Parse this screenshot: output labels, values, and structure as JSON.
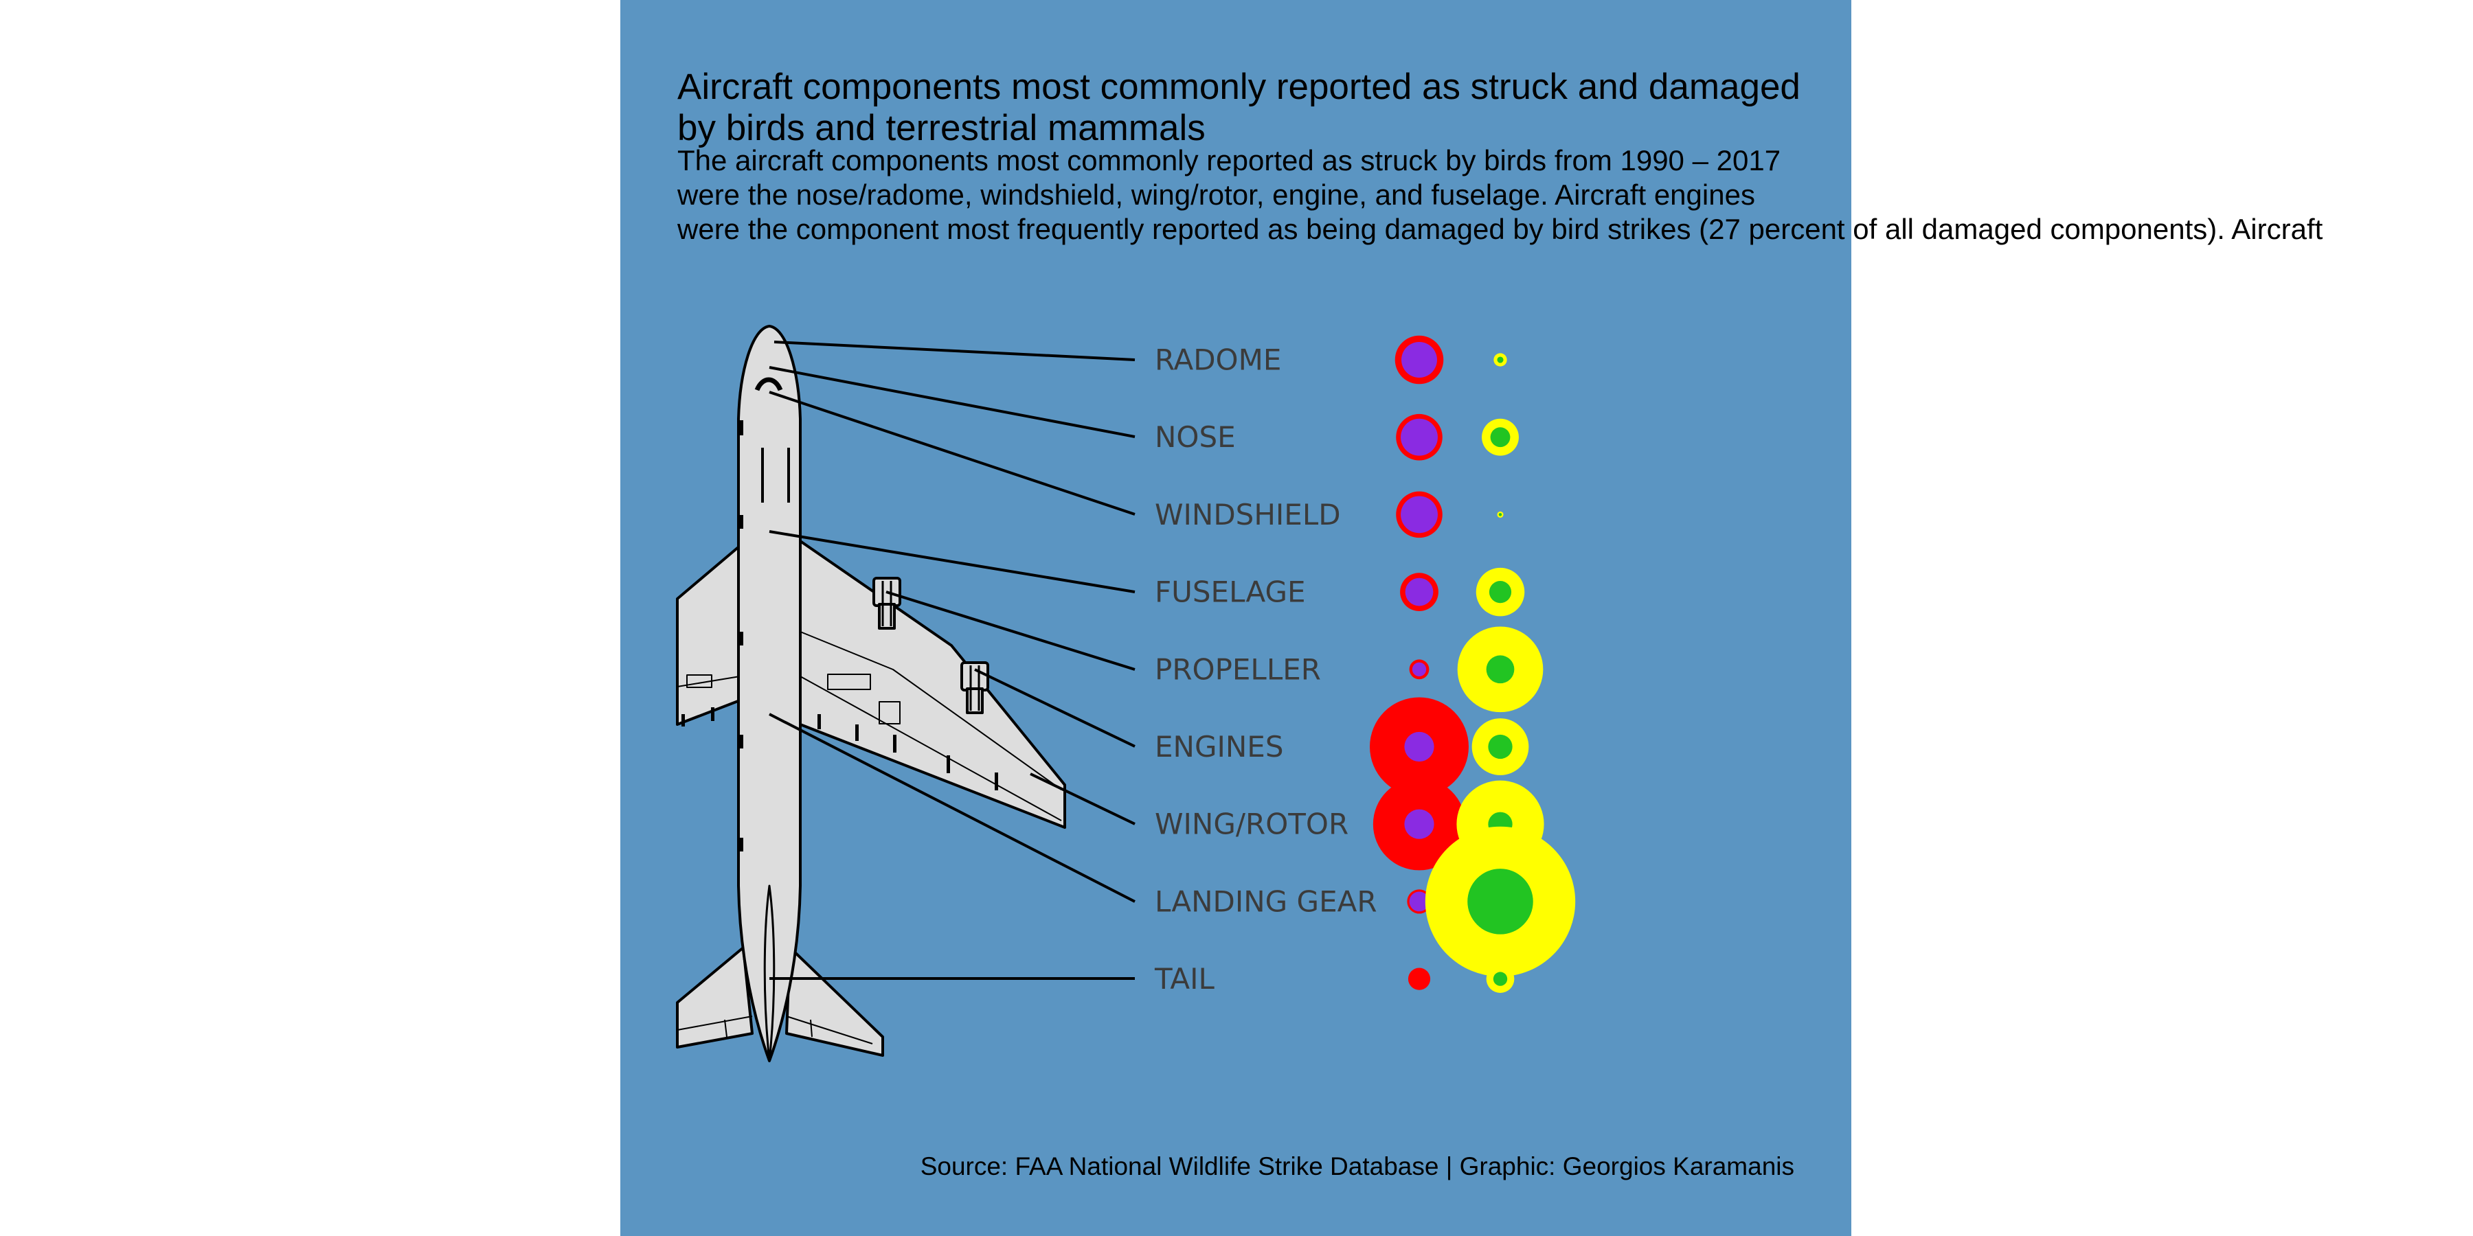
{
  "title": {
    "line1": "Aircraft components most commonly reported as struck and damaged",
    "line2": "by birds and terrestrial mammals"
  },
  "subtitle": {
    "line1": "The aircraft components most commonly reported as struck by birds from 1990 – 2017",
    "line2": "were the nose/radome, windshield, wing/rotor, engine, and fuselage. Aircraft engines",
    "line3": "were the component most frequently reported as being damaged by bird strikes (27 percent of all damaged components). Aircraft"
  },
  "caption": "Source: FAA National Wildlife Strike Database | Graphic: Georgios Karamanis",
  "colors": {
    "background": "#5b95c2",
    "birds_struck": "#ff0000",
    "birds_damaged": "#8a2be2",
    "mammals_struck": "#ffff00",
    "mammals_damaged": "#22c422",
    "airplane_fill": "#dddddd",
    "airplane_stroke": "#000000",
    "label_text": "#3b3b3b"
  },
  "chart_data": {
    "type": "bubble",
    "categories": [
      "RADOME",
      "NOSE",
      "WINDSHIELD",
      "FUSELAGE",
      "PROPELLER",
      "ENGINES",
      "WING/ROTOR",
      "LANDING GEAR",
      "TAIL"
    ],
    "series": [
      {
        "name": "",
        "group": "birds",
        "measure": "struck",
        "values": [
          0.24,
          0.22,
          0.22,
          0.15,
          0.04,
          1.0,
          0.87,
          0.06,
          0.05
        ]
      },
      {
        "name": "",
        "group": "birds",
        "measure": "damaged",
        "values": [
          0.13,
          0.14,
          0.14,
          0.08,
          0.02,
          0.09,
          0.09,
          0.04,
          0.0
        ]
      },
      {
        "name": "",
        "group": "mammals",
        "measure": "struck",
        "values": [
          0.018,
          0.14,
          0.004,
          0.24,
          0.75,
          0.33,
          0.78,
          2.3,
          0.08
        ]
      },
      {
        "name": "",
        "group": "mammals",
        "measure": "damaged",
        "values": [
          0.004,
          0.04,
          0.001,
          0.05,
          0.08,
          0.06,
          0.06,
          0.44,
          0.02
        ]
      }
    ]
  }
}
